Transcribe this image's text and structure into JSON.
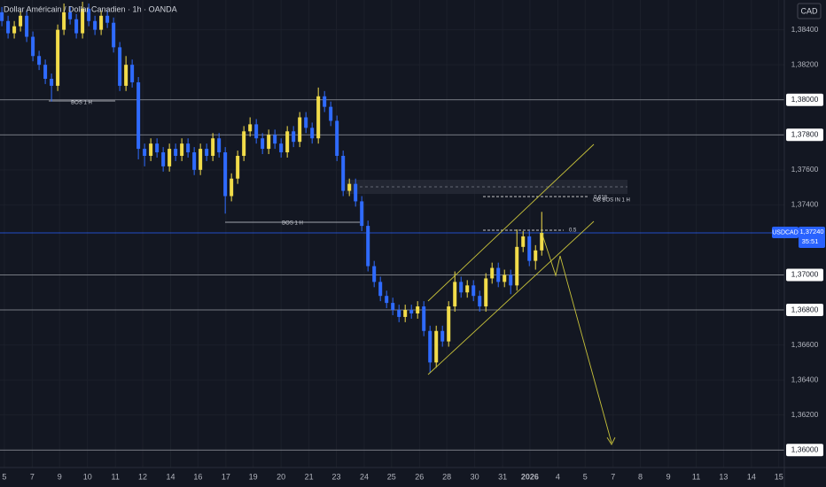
{
  "chart_data": {
    "type": "candlestick",
    "title": "Dollar Américain / Dollar Canadien · 1h · OANDA",
    "currency": "CAD",
    "symbol": "USDCAD",
    "countdown": "35:51",
    "last_price": {
      "value": 1.3724,
      "label": "1,37240"
    },
    "up_color": "#f2dc4a",
    "down_color": "#2f6bff",
    "x": [
      0,
      1,
      2,
      3,
      4,
      5,
      6,
      7,
      8,
      9,
      10,
      11,
      12,
      13,
      14,
      15,
      16,
      17,
      18,
      19,
      20,
      21,
      22,
      23,
      24,
      25,
      26,
      27,
      28,
      29,
      30,
      31,
      32,
      33,
      34,
      35,
      36,
      37,
      38,
      39,
      40,
      41,
      42,
      43,
      44,
      45,
      46,
      47,
      48,
      49,
      50,
      51,
      52,
      53,
      54,
      55,
      56,
      57,
      58,
      59,
      60,
      61,
      62,
      63,
      64,
      65,
      66,
      67,
      68,
      69,
      70,
      71,
      72,
      73,
      74,
      75,
      76,
      77,
      78,
      79,
      80,
      81,
      82,
      83,
      84,
      85,
      86,
      87
    ],
    "open": [
      1.385,
      1.3845,
      1.3838,
      1.3842,
      1.3848,
      1.3836,
      1.3825,
      1.382,
      1.3812,
      1.3808,
      1.384,
      1.385,
      1.3846,
      1.3838,
      1.3852,
      1.3845,
      1.384,
      1.3848,
      1.3844,
      1.383,
      1.3808,
      1.382,
      1.381,
      1.3772,
      1.3768,
      1.3775,
      1.377,
      1.3762,
      1.3772,
      1.3768,
      1.3775,
      1.377,
      1.376,
      1.3772,
      1.3768,
      1.3778,
      1.377,
      1.3745,
      1.3755,
      1.3768,
      1.3782,
      1.3786,
      1.3778,
      1.3772,
      1.378,
      1.3775,
      1.377,
      1.3782,
      1.3776,
      1.379,
      1.3784,
      1.3778,
      1.3802,
      1.3796,
      1.3788,
      1.3768,
      1.3748,
      1.3752,
      1.3742,
      1.3728,
      1.3705,
      1.3696,
      1.3688,
      1.3684,
      1.368,
      1.3676,
      1.368,
      1.3678,
      1.3682,
      1.3668,
      1.365,
      1.3668,
      1.3662,
      1.3682,
      1.3696,
      1.369,
      1.3694,
      1.3688,
      1.3682,
      1.3698,
      1.3704,
      1.3696,
      1.37,
      1.3694,
      1.3716,
      1.3722,
      1.3708,
      1.3714
    ],
    "high": [
      1.3853,
      1.3848,
      1.3845,
      1.3851,
      1.3851,
      1.3839,
      1.3828,
      1.3823,
      1.3815,
      1.3843,
      1.3855,
      1.3853,
      1.3849,
      1.3856,
      1.3855,
      1.3848,
      1.3851,
      1.3851,
      1.3847,
      1.3833,
      1.3825,
      1.3823,
      1.3813,
      1.3775,
      1.3778,
      1.3778,
      1.3773,
      1.3775,
      1.3775,
      1.3778,
      1.3778,
      1.3773,
      1.3775,
      1.3775,
      1.3781,
      1.3781,
      1.3773,
      1.3758,
      1.3771,
      1.3785,
      1.379,
      1.3789,
      1.3781,
      1.3783,
      1.3783,
      1.3778,
      1.3785,
      1.3785,
      1.3793,
      1.3793,
      1.3787,
      1.3807,
      1.3805,
      1.3799,
      1.3791,
      1.3771,
      1.3755,
      1.3755,
      1.3745,
      1.3731,
      1.3708,
      1.3699,
      1.3691,
      1.3687,
      1.3683,
      1.3683,
      1.3683,
      1.3685,
      1.3685,
      1.3671,
      1.3671,
      1.3671,
      1.3685,
      1.3702,
      1.3699,
      1.3697,
      1.3697,
      1.3691,
      1.3701,
      1.3707,
      1.3707,
      1.3703,
      1.3703,
      1.3726,
      1.3725,
      1.3725,
      1.3717,
      1.3736
    ],
    "low": [
      1.3842,
      1.3835,
      1.3835,
      1.3839,
      1.3833,
      1.3822,
      1.3817,
      1.3809,
      1.3799,
      1.3805,
      1.3837,
      1.3843,
      1.3835,
      1.3835,
      1.3842,
      1.3837,
      1.3837,
      1.3841,
      1.3827,
      1.3805,
      1.3805,
      1.3807,
      1.3766,
      1.3762,
      1.3765,
      1.3767,
      1.3759,
      1.3759,
      1.3765,
      1.3765,
      1.3767,
      1.3757,
      1.3757,
      1.3765,
      1.3765,
      1.3767,
      1.3735,
      1.3742,
      1.3752,
      1.3765,
      1.3779,
      1.3775,
      1.3769,
      1.3769,
      1.3772,
      1.3767,
      1.3767,
      1.3773,
      1.3773,
      1.3781,
      1.3775,
      1.3775,
      1.3793,
      1.3785,
      1.3765,
      1.3745,
      1.3745,
      1.3739,
      1.3725,
      1.3702,
      1.3693,
      1.3685,
      1.3681,
      1.3677,
      1.3673,
      1.3673,
      1.3675,
      1.3675,
      1.3665,
      1.3644,
      1.3647,
      1.3659,
      1.3659,
      1.3679,
      1.3687,
      1.3687,
      1.3685,
      1.3679,
      1.3679,
      1.3695,
      1.3693,
      1.3693,
      1.3689,
      1.3691,
      1.3713,
      1.3705,
      1.3703,
      1.3711
    ],
    "close": [
      1.3845,
      1.3838,
      1.3842,
      1.3848,
      1.3836,
      1.3825,
      1.382,
      1.3812,
      1.3808,
      1.384,
      1.385,
      1.3846,
      1.3838,
      1.3852,
      1.3845,
      1.384,
      1.3848,
      1.3844,
      1.383,
      1.3808,
      1.382,
      1.381,
      1.3772,
      1.3768,
      1.3775,
      1.377,
      1.3762,
      1.3772,
      1.3768,
      1.3775,
      1.377,
      1.376,
      1.3772,
      1.3768,
      1.3778,
      1.377,
      1.3745,
      1.3755,
      1.3768,
      1.3782,
      1.3786,
      1.3778,
      1.3772,
      1.378,
      1.3775,
      1.377,
      1.3782,
      1.3776,
      1.379,
      1.3784,
      1.3778,
      1.3802,
      1.3796,
      1.3788,
      1.3768,
      1.3748,
      1.3752,
      1.3742,
      1.3728,
      1.3705,
      1.3696,
      1.3688,
      1.3684,
      1.368,
      1.3676,
      1.368,
      1.3678,
      1.3682,
      1.3668,
      1.365,
      1.3668,
      1.3662,
      1.3682,
      1.3696,
      1.369,
      1.3694,
      1.3688,
      1.3682,
      1.3698,
      1.3704,
      1.3696,
      1.37,
      1.3694,
      1.3716,
      1.3722,
      1.3708,
      1.3714,
      1.3724
    ],
    "xlim": [
      -0.3,
      126.1
    ],
    "ylim": [
      1.359,
      1.3857
    ],
    "xticks": [
      {
        "value": 0.4,
        "label": "5"
      },
      {
        "value": 4.9,
        "label": "7"
      },
      {
        "value": 9.3,
        "label": "9"
      },
      {
        "value": 13.8,
        "label": "10"
      },
      {
        "value": 18.3,
        "label": "11"
      },
      {
        "value": 22.7,
        "label": "12"
      },
      {
        "value": 27.2,
        "label": "14"
      },
      {
        "value": 31.6,
        "label": "16"
      },
      {
        "value": 36.1,
        "label": "17"
      },
      {
        "value": 40.5,
        "label": "19"
      },
      {
        "value": 45.0,
        "label": "20"
      },
      {
        "value": 49.5,
        "label": "21"
      },
      {
        "value": 53.9,
        "label": "23"
      },
      {
        "value": 58.4,
        "label": "24"
      },
      {
        "value": 62.8,
        "label": "25"
      },
      {
        "value": 67.3,
        "label": "26"
      },
      {
        "value": 71.7,
        "label": "28"
      },
      {
        "value": 76.2,
        "label": "30"
      },
      {
        "value": 80.7,
        "label": "31"
      },
      {
        "value": 85.1,
        "label": "2026"
      },
      {
        "value": 89.6,
        "label": "4"
      },
      {
        "value": 94.0,
        "label": "5"
      },
      {
        "value": 98.5,
        "label": "7"
      },
      {
        "value": 102.9,
        "label": "8"
      },
      {
        "value": 107.4,
        "label": "9"
      },
      {
        "value": 111.9,
        "label": "11"
      },
      {
        "value": 116.3,
        "label": "13"
      },
      {
        "value": 120.8,
        "label": "14"
      },
      {
        "value": 125.2,
        "label": "15"
      }
    ],
    "yticks": [
      {
        "value": 1.384,
        "label": "1,38400"
      },
      {
        "value": 1.382,
        "label": "1,38200"
      },
      {
        "value": 1.38,
        "label": "1,38000"
      },
      {
        "value": 1.378,
        "label": "1,37800"
      },
      {
        "value": 1.376,
        "label": "1,37600"
      },
      {
        "value": 1.374,
        "label": "1,37400"
      },
      {
        "value": 1.37,
        "label": "1,37000"
      },
      {
        "value": 1.368,
        "label": "1,36800"
      },
      {
        "value": 1.366,
        "label": "1,36600"
      },
      {
        "value": 1.364,
        "label": "1,36400"
      },
      {
        "value": 1.362,
        "label": "1,36200"
      },
      {
        "value": 1.36,
        "label": "1,36000"
      }
    ],
    "levels": [
      1.38,
      1.378,
      1.37,
      1.368,
      1.36
    ],
    "grid": true,
    "annotations": [
      "BOS 1 H",
      "BOS 1 H",
      "OB BOS IN 1 H"
    ],
    "fib_levels": [
      0.618,
      0.5
    ]
  }
}
